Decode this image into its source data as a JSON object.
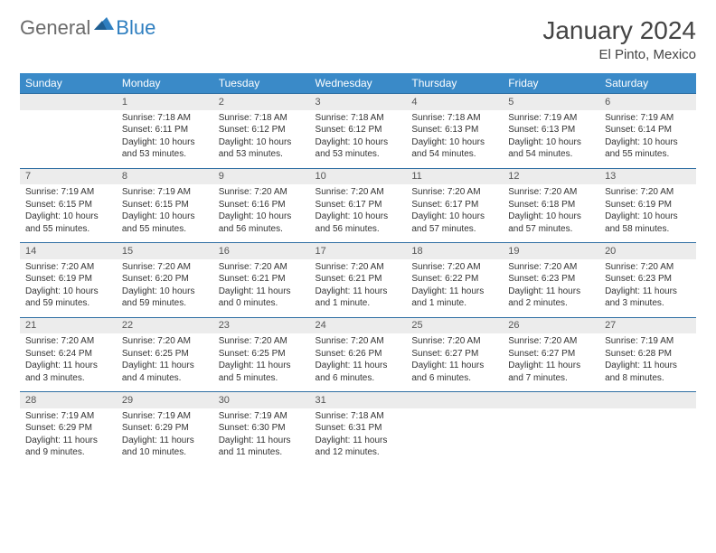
{
  "logo": {
    "general": "General",
    "blue": "Blue"
  },
  "title": {
    "month": "January 2024",
    "location": "El Pinto, Mexico"
  },
  "colors": {
    "header_bg": "#3a8ac8",
    "header_text": "#ffffff",
    "date_bg": "#ececec",
    "row_border": "#2f6fa3",
    "text": "#333333",
    "logo_gray": "#6b6b6b",
    "logo_blue": "#2f7fc0"
  },
  "day_names": [
    "Sunday",
    "Monday",
    "Tuesday",
    "Wednesday",
    "Thursday",
    "Friday",
    "Saturday"
  ],
  "weeks": [
    [
      null,
      {
        "n": "1",
        "sr": "7:18 AM",
        "ss": "6:11 PM",
        "dl": "10 hours and 53 minutes."
      },
      {
        "n": "2",
        "sr": "7:18 AM",
        "ss": "6:12 PM",
        "dl": "10 hours and 53 minutes."
      },
      {
        "n": "3",
        "sr": "7:18 AM",
        "ss": "6:12 PM",
        "dl": "10 hours and 53 minutes."
      },
      {
        "n": "4",
        "sr": "7:18 AM",
        "ss": "6:13 PM",
        "dl": "10 hours and 54 minutes."
      },
      {
        "n": "5",
        "sr": "7:19 AM",
        "ss": "6:13 PM",
        "dl": "10 hours and 54 minutes."
      },
      {
        "n": "6",
        "sr": "7:19 AM",
        "ss": "6:14 PM",
        "dl": "10 hours and 55 minutes."
      }
    ],
    [
      {
        "n": "7",
        "sr": "7:19 AM",
        "ss": "6:15 PM",
        "dl": "10 hours and 55 minutes."
      },
      {
        "n": "8",
        "sr": "7:19 AM",
        "ss": "6:15 PM",
        "dl": "10 hours and 55 minutes."
      },
      {
        "n": "9",
        "sr": "7:20 AM",
        "ss": "6:16 PM",
        "dl": "10 hours and 56 minutes."
      },
      {
        "n": "10",
        "sr": "7:20 AM",
        "ss": "6:17 PM",
        "dl": "10 hours and 56 minutes."
      },
      {
        "n": "11",
        "sr": "7:20 AM",
        "ss": "6:17 PM",
        "dl": "10 hours and 57 minutes."
      },
      {
        "n": "12",
        "sr": "7:20 AM",
        "ss": "6:18 PM",
        "dl": "10 hours and 57 minutes."
      },
      {
        "n": "13",
        "sr": "7:20 AM",
        "ss": "6:19 PM",
        "dl": "10 hours and 58 minutes."
      }
    ],
    [
      {
        "n": "14",
        "sr": "7:20 AM",
        "ss": "6:19 PM",
        "dl": "10 hours and 59 minutes."
      },
      {
        "n": "15",
        "sr": "7:20 AM",
        "ss": "6:20 PM",
        "dl": "10 hours and 59 minutes."
      },
      {
        "n": "16",
        "sr": "7:20 AM",
        "ss": "6:21 PM",
        "dl": "11 hours and 0 minutes."
      },
      {
        "n": "17",
        "sr": "7:20 AM",
        "ss": "6:21 PM",
        "dl": "11 hours and 1 minute."
      },
      {
        "n": "18",
        "sr": "7:20 AM",
        "ss": "6:22 PM",
        "dl": "11 hours and 1 minute."
      },
      {
        "n": "19",
        "sr": "7:20 AM",
        "ss": "6:23 PM",
        "dl": "11 hours and 2 minutes."
      },
      {
        "n": "20",
        "sr": "7:20 AM",
        "ss": "6:23 PM",
        "dl": "11 hours and 3 minutes."
      }
    ],
    [
      {
        "n": "21",
        "sr": "7:20 AM",
        "ss": "6:24 PM",
        "dl": "11 hours and 3 minutes."
      },
      {
        "n": "22",
        "sr": "7:20 AM",
        "ss": "6:25 PM",
        "dl": "11 hours and 4 minutes."
      },
      {
        "n": "23",
        "sr": "7:20 AM",
        "ss": "6:25 PM",
        "dl": "11 hours and 5 minutes."
      },
      {
        "n": "24",
        "sr": "7:20 AM",
        "ss": "6:26 PM",
        "dl": "11 hours and 6 minutes."
      },
      {
        "n": "25",
        "sr": "7:20 AM",
        "ss": "6:27 PM",
        "dl": "11 hours and 6 minutes."
      },
      {
        "n": "26",
        "sr": "7:20 AM",
        "ss": "6:27 PM",
        "dl": "11 hours and 7 minutes."
      },
      {
        "n": "27",
        "sr": "7:19 AM",
        "ss": "6:28 PM",
        "dl": "11 hours and 8 minutes."
      }
    ],
    [
      {
        "n": "28",
        "sr": "7:19 AM",
        "ss": "6:29 PM",
        "dl": "11 hours and 9 minutes."
      },
      {
        "n": "29",
        "sr": "7:19 AM",
        "ss": "6:29 PM",
        "dl": "11 hours and 10 minutes."
      },
      {
        "n": "30",
        "sr": "7:19 AM",
        "ss": "6:30 PM",
        "dl": "11 hours and 11 minutes."
      },
      {
        "n": "31",
        "sr": "7:18 AM",
        "ss": "6:31 PM",
        "dl": "11 hours and 12 minutes."
      },
      null,
      null,
      null
    ]
  ],
  "labels": {
    "sunrise": "Sunrise:",
    "sunset": "Sunset:",
    "daylight": "Daylight:"
  }
}
